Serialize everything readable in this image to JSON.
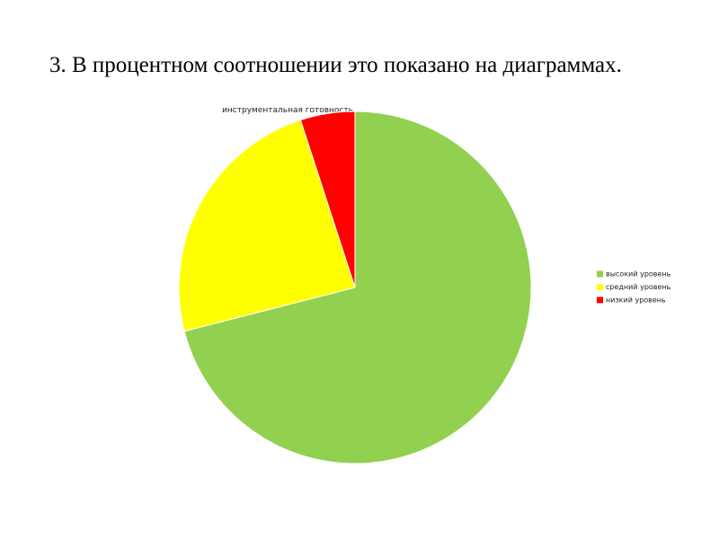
{
  "heading": "3. В процентном соотношении это показано на диаграммах.",
  "chart_data": {
    "type": "pie",
    "title": "инструментальная готовность",
    "categories": [
      "высокий уровень",
      "средний уровень",
      "низкий уровень"
    ],
    "values": [
      71,
      24,
      5
    ],
    "colors": [
      "#92d050",
      "#ffff00",
      "#ff0000"
    ],
    "legend": "right"
  }
}
